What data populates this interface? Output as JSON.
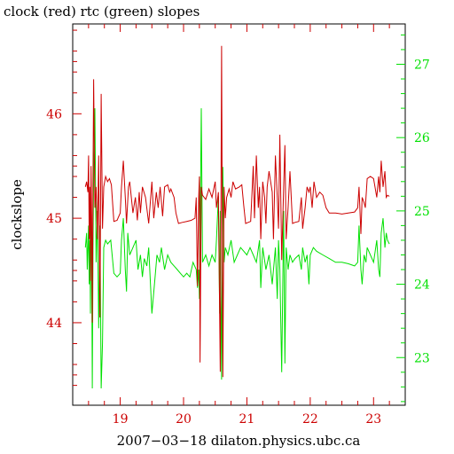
{
  "chart_data": {
    "type": "line",
    "title": "clock (red) rtc (green) slopes",
    "xlabel": "2007−03−18  dilaton.physics.ubc.ca",
    "ylabel": "clockslope",
    "xlim": [
      18.25,
      23.5
    ],
    "x_ticks": [
      19,
      20,
      21,
      22,
      23
    ],
    "y_left": {
      "lim": [
        43.21,
        46.86
      ],
      "ticks": [
        44,
        45,
        46
      ],
      "color": "#cc0000"
    },
    "y_right": {
      "lim": [
        22.35,
        27.55
      ],
      "ticks": [
        23,
        24,
        25,
        26,
        27
      ],
      "color": "#00e000"
    },
    "grid": false,
    "series": [
      {
        "name": "clock",
        "color": "#cc0000",
        "axis": "left",
        "points": [
          [
            18.45,
            45.3
          ],
          [
            18.47,
            45.35
          ],
          [
            18.49,
            45.25
          ],
          [
            18.5,
            45.6
          ],
          [
            18.51,
            44.8
          ],
          [
            18.52,
            45.3
          ],
          [
            18.53,
            44.4
          ],
          [
            18.54,
            45.5
          ],
          [
            18.55,
            45.0
          ],
          [
            18.56,
            44.0
          ],
          [
            18.57,
            45.4
          ],
          [
            18.58,
            46.33
          ],
          [
            18.6,
            45.1
          ],
          [
            18.62,
            45.3
          ],
          [
            18.64,
            44.8
          ],
          [
            18.66,
            45.6
          ],
          [
            18.68,
            44.05
          ],
          [
            18.7,
            46.19
          ],
          [
            18.72,
            44.9
          ],
          [
            18.74,
            45.3
          ],
          [
            18.77,
            45.4
          ],
          [
            18.8,
            45.35
          ],
          [
            18.83,
            45.38
          ],
          [
            18.86,
            45.32
          ],
          [
            18.9,
            44.97
          ],
          [
            18.95,
            44.98
          ],
          [
            19.0,
            45.05
          ],
          [
            19.02,
            45.3
          ],
          [
            19.05,
            45.55
          ],
          [
            19.08,
            45.2
          ],
          [
            19.1,
            44.95
          ],
          [
            19.13,
            45.3
          ],
          [
            19.15,
            45.35
          ],
          [
            19.2,
            45.05
          ],
          [
            19.24,
            45.2
          ],
          [
            19.27,
            44.98
          ],
          [
            19.3,
            45.25
          ],
          [
            19.32,
            45.05
          ],
          [
            19.35,
            45.3
          ],
          [
            19.4,
            45.2
          ],
          [
            19.45,
            44.95
          ],
          [
            19.5,
            45.35
          ],
          [
            19.53,
            45.0
          ],
          [
            19.57,
            45.25
          ],
          [
            19.6,
            45.1
          ],
          [
            19.63,
            45.3
          ],
          [
            19.67,
            45.02
          ],
          [
            19.7,
            45.3
          ],
          [
            19.75,
            45.32
          ],
          [
            19.78,
            45.25
          ],
          [
            19.8,
            45.28
          ],
          [
            19.85,
            45.2
          ],
          [
            19.88,
            45.05
          ],
          [
            19.92,
            44.95
          ],
          [
            19.98,
            44.96
          ],
          [
            20.05,
            44.97
          ],
          [
            20.12,
            44.98
          ],
          [
            20.18,
            45.0
          ],
          [
            20.2,
            45.2
          ],
          [
            20.22,
            44.35
          ],
          [
            20.24,
            45.2
          ],
          [
            20.25,
            45.4
          ],
          [
            20.26,
            43.62
          ],
          [
            20.28,
            45.3
          ],
          [
            20.3,
            45.22
          ],
          [
            20.35,
            45.18
          ],
          [
            20.4,
            45.28
          ],
          [
            20.45,
            45.2
          ],
          [
            20.5,
            45.35
          ],
          [
            20.52,
            45.1
          ],
          [
            20.55,
            45.25
          ],
          [
            20.58,
            43.53
          ],
          [
            20.6,
            46.65
          ],
          [
            20.62,
            43.48
          ],
          [
            20.64,
            45.3
          ],
          [
            20.66,
            45.0
          ],
          [
            20.68,
            45.2
          ],
          [
            20.72,
            45.28
          ],
          [
            20.75,
            45.2
          ],
          [
            20.78,
            45.35
          ],
          [
            20.82,
            45.28
          ],
          [
            20.88,
            45.3
          ],
          [
            20.92,
            45.32
          ],
          [
            20.95,
            45.12
          ],
          [
            20.98,
            44.95
          ],
          [
            21.02,
            44.96
          ],
          [
            21.06,
            44.97
          ],
          [
            21.1,
            45.5
          ],
          [
            21.12,
            45.0
          ],
          [
            21.15,
            45.6
          ],
          [
            21.18,
            45.1
          ],
          [
            21.2,
            45.3
          ],
          [
            21.22,
            44.8
          ],
          [
            21.25,
            45.35
          ],
          [
            21.28,
            45.2
          ],
          [
            21.3,
            44.95
          ],
          [
            21.32,
            45.3
          ],
          [
            21.35,
            45.45
          ],
          [
            21.4,
            45.25
          ],
          [
            21.42,
            44.8
          ],
          [
            21.45,
            45.6
          ],
          [
            21.48,
            45.2
          ],
          [
            21.5,
            44.9
          ],
          [
            21.52,
            45.8
          ],
          [
            21.55,
            44.6
          ],
          [
            21.58,
            45.3
          ],
          [
            21.6,
            45.7
          ],
          [
            21.62,
            44.8
          ],
          [
            21.65,
            45.1
          ],
          [
            21.68,
            45.45
          ],
          [
            21.72,
            44.95
          ],
          [
            21.76,
            44.96
          ],
          [
            21.82,
            44.97
          ],
          [
            21.86,
            45.2
          ],
          [
            21.88,
            44.9
          ],
          [
            21.92,
            45.1
          ],
          [
            21.95,
            45.3
          ],
          [
            21.98,
            45.25
          ],
          [
            22.0,
            45.3
          ],
          [
            22.03,
            45.1
          ],
          [
            22.06,
            45.35
          ],
          [
            22.1,
            45.2
          ],
          [
            22.15,
            45.25
          ],
          [
            22.2,
            45.22
          ],
          [
            22.25,
            45.1
          ],
          [
            22.3,
            45.05
          ],
          [
            22.4,
            45.05
          ],
          [
            22.5,
            45.04
          ],
          [
            22.6,
            45.05
          ],
          [
            22.7,
            45.06
          ],
          [
            22.75,
            45.1
          ],
          [
            22.77,
            45.3
          ],
          [
            22.8,
            44.85
          ],
          [
            22.82,
            45.2
          ],
          [
            22.85,
            45.15
          ],
          [
            22.87,
            45.1
          ],
          [
            22.9,
            45.38
          ],
          [
            22.95,
            45.4
          ],
          [
            23.0,
            45.38
          ],
          [
            23.05,
            45.2
          ],
          [
            23.08,
            45.4
          ],
          [
            23.1,
            45.25
          ],
          [
            23.12,
            45.55
          ],
          [
            23.15,
            45.3
          ],
          [
            23.18,
            45.45
          ],
          [
            23.2,
            45.2
          ],
          [
            23.22,
            45.22
          ],
          [
            23.25,
            45.21
          ]
        ]
      },
      {
        "name": "rtc",
        "color": "#00e000",
        "axis": "right",
        "points": [
          [
            18.45,
            24.5
          ],
          [
            18.47,
            24.7
          ],
          [
            18.48,
            24.2
          ],
          [
            18.5,
            24.8
          ],
          [
            18.51,
            24.0
          ],
          [
            18.52,
            24.6
          ],
          [
            18.53,
            23.6
          ],
          [
            18.54,
            25.0
          ],
          [
            18.55,
            24.3
          ],
          [
            18.56,
            22.58
          ],
          [
            18.57,
            24.5
          ],
          [
            18.58,
            25.5
          ],
          [
            18.6,
            26.4
          ],
          [
            18.62,
            24.3
          ],
          [
            18.64,
            25.0
          ],
          [
            18.66,
            23.4
          ],
          [
            18.68,
            24.8
          ],
          [
            18.7,
            22.58
          ],
          [
            18.72,
            23.2
          ],
          [
            18.74,
            24.5
          ],
          [
            18.77,
            24.6
          ],
          [
            18.8,
            24.55
          ],
          [
            18.85,
            24.6
          ],
          [
            18.9,
            24.15
          ],
          [
            18.95,
            24.1
          ],
          [
            19.0,
            24.15
          ],
          [
            19.02,
            24.6
          ],
          [
            19.05,
            24.9
          ],
          [
            19.08,
            24.2
          ],
          [
            19.1,
            23.9
          ],
          [
            19.12,
            24.7
          ],
          [
            19.15,
            24.4
          ],
          [
            19.2,
            24.5
          ],
          [
            19.25,
            24.6
          ],
          [
            19.28,
            24.2
          ],
          [
            19.32,
            24.4
          ],
          [
            19.35,
            24.1
          ],
          [
            19.38,
            24.35
          ],
          [
            19.42,
            24.25
          ],
          [
            19.45,
            24.5
          ],
          [
            19.5,
            23.6
          ],
          [
            19.55,
            24.1
          ],
          [
            19.58,
            24.4
          ],
          [
            19.62,
            24.3
          ],
          [
            19.65,
            24.5
          ],
          [
            19.7,
            24.2
          ],
          [
            19.75,
            24.4
          ],
          [
            19.8,
            24.3
          ],
          [
            19.85,
            24.25
          ],
          [
            19.9,
            24.2
          ],
          [
            19.95,
            24.15
          ],
          [
            20.0,
            24.1
          ],
          [
            20.05,
            24.15
          ],
          [
            20.1,
            24.1
          ],
          [
            20.15,
            24.3
          ],
          [
            20.2,
            24.2
          ],
          [
            20.22,
            23.95
          ],
          [
            20.24,
            24.2
          ],
          [
            20.25,
            23.8
          ],
          [
            20.26,
            24.5
          ],
          [
            20.28,
            26.4
          ],
          [
            20.3,
            24.3
          ],
          [
            20.35,
            24.4
          ],
          [
            20.4,
            24.25
          ],
          [
            20.45,
            24.4
          ],
          [
            20.5,
            24.3
          ],
          [
            20.52,
            24.6
          ],
          [
            20.55,
            25.2
          ],
          [
            20.57,
            23.6
          ],
          [
            20.58,
            25.0
          ],
          [
            20.6,
            22.7
          ],
          [
            20.62,
            25.6
          ],
          [
            20.64,
            24.3
          ],
          [
            20.66,
            24.5
          ],
          [
            20.7,
            24.4
          ],
          [
            20.75,
            24.6
          ],
          [
            20.8,
            24.3
          ],
          [
            20.85,
            24.4
          ],
          [
            20.9,
            24.5
          ],
          [
            20.95,
            24.45
          ],
          [
            21.0,
            24.4
          ],
          [
            21.05,
            24.5
          ],
          [
            21.1,
            24.4
          ],
          [
            21.15,
            24.3
          ],
          [
            21.2,
            24.6
          ],
          [
            21.22,
            23.95
          ],
          [
            21.25,
            24.5
          ],
          [
            21.3,
            24.2
          ],
          [
            21.35,
            24.4
          ],
          [
            21.4,
            24.0
          ],
          [
            21.45,
            24.5
          ],
          [
            21.48,
            23.8
          ],
          [
            21.5,
            24.6
          ],
          [
            21.52,
            24.2
          ],
          [
            21.55,
            22.8
          ],
          [
            21.58,
            25.0
          ],
          [
            21.6,
            22.92
          ],
          [
            21.62,
            24.5
          ],
          [
            21.65,
            24.2
          ],
          [
            21.68,
            24.4
          ],
          [
            21.72,
            24.3
          ],
          [
            21.76,
            24.35
          ],
          [
            21.82,
            24.4
          ],
          [
            21.86,
            24.2
          ],
          [
            21.88,
            24.5
          ],
          [
            21.92,
            24.3
          ],
          [
            21.95,
            24.4
          ],
          [
            21.98,
            24.0
          ],
          [
            22.0,
            24.4
          ],
          [
            22.05,
            24.5
          ],
          [
            22.1,
            24.45
          ],
          [
            22.2,
            24.4
          ],
          [
            22.3,
            24.35
          ],
          [
            22.4,
            24.3
          ],
          [
            22.5,
            24.3
          ],
          [
            22.6,
            24.28
          ],
          [
            22.7,
            24.25
          ],
          [
            22.75,
            24.3
          ],
          [
            22.77,
            24.8
          ],
          [
            22.8,
            24.2
          ],
          [
            22.82,
            24.0
          ],
          [
            22.85,
            24.4
          ],
          [
            22.88,
            24.3
          ],
          [
            22.9,
            24.5
          ],
          [
            22.95,
            24.4
          ],
          [
            23.0,
            24.3
          ],
          [
            23.05,
            24.6
          ],
          [
            23.08,
            24.2
          ],
          [
            23.1,
            24.1
          ],
          [
            23.12,
            24.7
          ],
          [
            23.15,
            24.9
          ],
          [
            23.18,
            24.5
          ],
          [
            23.2,
            24.7
          ],
          [
            23.22,
            24.6
          ],
          [
            23.25,
            24.55
          ]
        ]
      }
    ]
  }
}
